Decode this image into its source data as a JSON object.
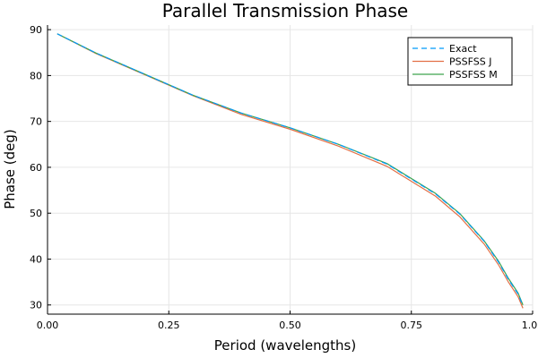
{
  "chart_data": {
    "type": "line",
    "title": "Parallel Transmission Phase",
    "xlabel": "Period (wavelengths)",
    "ylabel": "Phase (deg)",
    "xlim": [
      0.0,
      1.0
    ],
    "ylim": [
      28,
      91
    ],
    "xticks": [
      0.0,
      0.25,
      0.5,
      0.75,
      1.0
    ],
    "xtick_labels": [
      "0.00",
      "0.25",
      "0.50",
      "0.75",
      "1.00"
    ],
    "yticks": [
      30,
      40,
      50,
      60,
      70,
      80,
      90
    ],
    "ytick_labels": [
      "30",
      "40",
      "50",
      "60",
      "70",
      "80",
      "90"
    ],
    "grid": true,
    "legend_position": "top-right",
    "x": [
      0.02,
      0.1,
      0.2,
      0.3,
      0.4,
      0.5,
      0.6,
      0.7,
      0.8,
      0.85,
      0.9,
      0.93,
      0.95,
      0.97,
      0.98
    ],
    "series": [
      {
        "name": "Exact",
        "color": "#009af9",
        "dash": "dashed",
        "values": [
          89.1,
          84.9,
          80.3,
          75.7,
          71.8,
          68.6,
          65.0,
          60.7,
          54.2,
          49.8,
          43.9,
          39.3,
          35.6,
          32.4,
          29.8
        ]
      },
      {
        "name": "PSSFSS J",
        "color": "#e26f46",
        "dash": "solid",
        "values": [
          89.1,
          84.8,
          80.2,
          75.6,
          71.5,
          68.3,
          64.6,
          60.2,
          53.7,
          49.2,
          43.3,
          38.7,
          35.0,
          31.8,
          29.3
        ]
      },
      {
        "name": "PSSFSS M",
        "color": "#3da44d",
        "dash": "solid",
        "values": [
          89.1,
          84.9,
          80.3,
          75.7,
          71.8,
          68.6,
          65.0,
          60.8,
          54.3,
          49.9,
          44.0,
          39.5,
          35.8,
          32.6,
          30.0
        ]
      }
    ]
  }
}
